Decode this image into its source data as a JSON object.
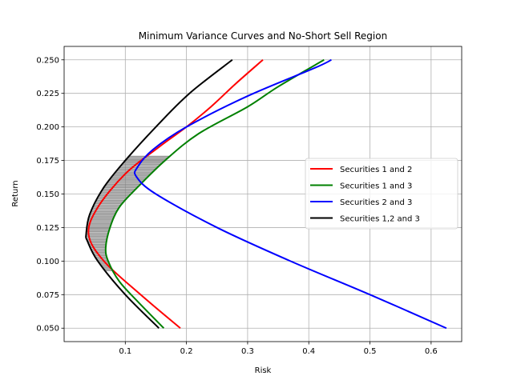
{
  "chart_data": {
    "type": "line",
    "title": "Minimum Variance Curves and No-Short Sell Region",
    "xlabel": "Risk",
    "ylabel": "Return",
    "xlim": [
      0.0,
      0.65
    ],
    "ylim": [
      0.04,
      0.26
    ],
    "x_ticks": [
      "0.1",
      "0.2",
      "0.3",
      "0.4",
      "0.5",
      "0.6"
    ],
    "x_tick_values": [
      0.1,
      0.2,
      0.3,
      0.4,
      0.5,
      0.6
    ],
    "y_ticks": [
      "0.050",
      "0.075",
      "0.100",
      "0.125",
      "0.150",
      "0.175",
      "0.200",
      "0.225",
      "0.250"
    ],
    "y_tick_values": [
      0.05,
      0.075,
      0.1,
      0.125,
      0.15,
      0.175,
      0.2,
      0.225,
      0.25
    ],
    "grid": true,
    "legend_position": "center-right",
    "shaded_region": {
      "description_color": "#808080",
      "between_series": [
        "Securities 1,2 and 3",
        "Securities 1 and 3"
      ],
      "y_range": [
        0.093,
        0.178
      ]
    },
    "series": [
      {
        "name": "Securities 1 and 2",
        "color": "#ff0000",
        "points": [
          [
            0.19,
            0.05
          ],
          [
            0.125,
            0.075
          ],
          [
            0.065,
            0.1
          ],
          [
            0.04,
            0.12
          ],
          [
            0.055,
            0.14
          ],
          [
            0.1,
            0.165
          ],
          [
            0.155,
            0.185
          ],
          [
            0.2,
            0.2
          ],
          [
            0.24,
            0.215
          ],
          [
            0.28,
            0.232
          ],
          [
            0.325,
            0.25
          ]
        ]
      },
      {
        "name": "Securities 1 and 3",
        "color": "#008000",
        "points": [
          [
            0.163,
            0.05
          ],
          [
            0.12,
            0.07
          ],
          [
            0.09,
            0.085
          ],
          [
            0.072,
            0.1
          ],
          [
            0.068,
            0.11
          ],
          [
            0.075,
            0.125
          ],
          [
            0.09,
            0.14
          ],
          [
            0.12,
            0.155
          ],
          [
            0.165,
            0.175
          ],
          [
            0.22,
            0.195
          ],
          [
            0.3,
            0.215
          ],
          [
            0.35,
            0.23
          ],
          [
            0.425,
            0.25
          ]
        ]
      },
      {
        "name": "Securities 2 and 3",
        "color": "#0000ff",
        "points": [
          [
            0.625,
            0.05
          ],
          [
            0.5,
            0.075
          ],
          [
            0.37,
            0.1
          ],
          [
            0.25,
            0.125
          ],
          [
            0.15,
            0.15
          ],
          [
            0.118,
            0.163
          ],
          [
            0.12,
            0.17
          ],
          [
            0.145,
            0.183
          ],
          [
            0.2,
            0.2
          ],
          [
            0.3,
            0.223
          ],
          [
            0.41,
            0.244
          ],
          [
            0.437,
            0.25
          ]
        ]
      },
      {
        "name": "Securities 1,2 and 3",
        "color": "#000000",
        "points": [
          [
            0.155,
            0.05
          ],
          [
            0.1,
            0.075
          ],
          [
            0.055,
            0.1
          ],
          [
            0.038,
            0.115
          ],
          [
            0.036,
            0.12
          ],
          [
            0.042,
            0.135
          ],
          [
            0.065,
            0.155
          ],
          [
            0.1,
            0.175
          ],
          [
            0.15,
            0.2
          ],
          [
            0.205,
            0.225
          ],
          [
            0.275,
            0.25
          ]
        ]
      }
    ]
  }
}
